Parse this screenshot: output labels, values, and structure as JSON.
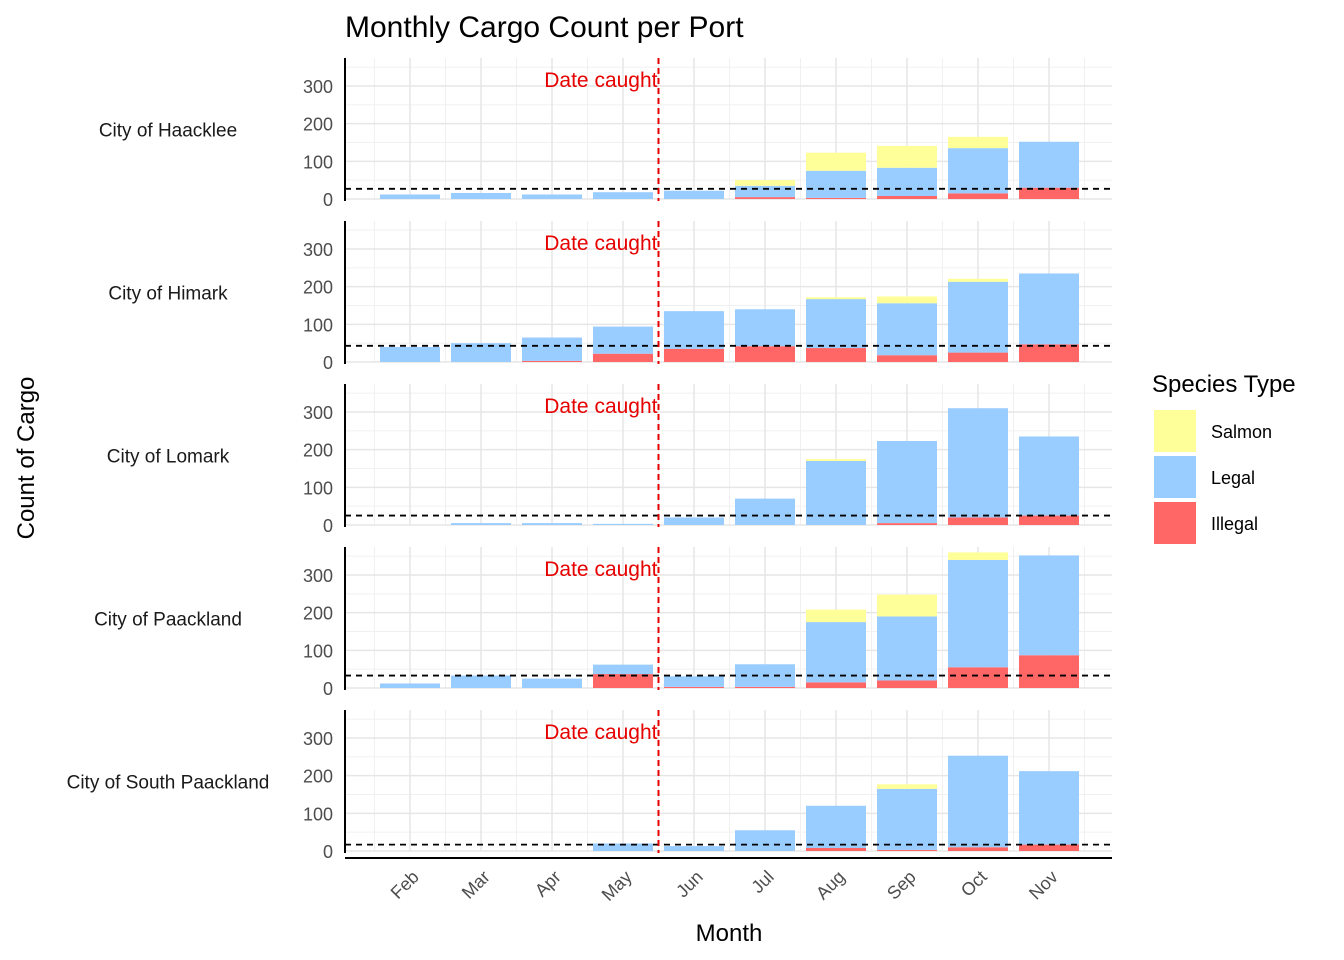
{
  "chart_data": {
    "type": "bar",
    "stacked": true,
    "faceted": true,
    "title": "Monthly Cargo Count per Port",
    "xlabel": "Month",
    "ylabel": "Count of Cargo",
    "ylim": [
      0,
      370
    ],
    "yticks": [
      0,
      100,
      200,
      300
    ],
    "categories": [
      "Feb",
      "Mar",
      "Apr",
      "May",
      "Jun",
      "Jul",
      "Aug",
      "Sep",
      "Oct",
      "Nov"
    ],
    "legend": {
      "title": "Species Type",
      "position": "right",
      "entries": [
        {
          "name": "Salmon",
          "color": "#ffff99"
        },
        {
          "name": "Legal",
          "color": "#99ccff"
        },
        {
          "name": "Illegal",
          "color": "#ff6666"
        }
      ]
    },
    "vline": {
      "after_category": "May",
      "label": "Date caught",
      "color": "#e60000"
    },
    "facets": [
      {
        "name": "City of Haacklee",
        "hline": 27,
        "illegal": [
          0,
          0,
          0,
          0,
          0,
          5,
          3,
          8,
          15,
          30
        ],
        "legal": [
          12,
          16,
          12,
          18,
          22,
          30,
          72,
          75,
          120,
          122
        ],
        "salmon": [
          0,
          0,
          0,
          0,
          0,
          15,
          48,
          58,
          30,
          0
        ]
      },
      {
        "name": "City of Himark",
        "hline": 43,
        "illegal": [
          0,
          0,
          3,
          22,
          35,
          42,
          37,
          18,
          25,
          47
        ],
        "legal": [
          40,
          50,
          62,
          72,
          100,
          98,
          130,
          138,
          188,
          188
        ],
        "salmon": [
          0,
          0,
          0,
          0,
          0,
          0,
          5,
          18,
          8,
          0
        ]
      },
      {
        "name": "City of Lomark",
        "hline": 25,
        "illegal": [
          0,
          0,
          0,
          0,
          0,
          0,
          0,
          5,
          20,
          25
        ],
        "legal": [
          0,
          5,
          5,
          3,
          20,
          70,
          170,
          218,
          290,
          210
        ],
        "salmon": [
          0,
          0,
          0,
          0,
          0,
          0,
          5,
          0,
          0,
          0
        ]
      },
      {
        "name": "City of Paackland",
        "hline": 33,
        "illegal": [
          0,
          0,
          0,
          37,
          3,
          3,
          15,
          20,
          55,
          87
        ],
        "legal": [
          12,
          33,
          25,
          25,
          28,
          60,
          160,
          170,
          285,
          265
        ],
        "salmon": [
          0,
          0,
          0,
          0,
          0,
          0,
          33,
          58,
          20,
          0
        ]
      },
      {
        "name": "City of South Paackland",
        "hline": 17,
        "illegal": [
          0,
          0,
          0,
          0,
          0,
          0,
          8,
          3,
          10,
          17
        ],
        "legal": [
          0,
          0,
          0,
          20,
          13,
          55,
          112,
          162,
          243,
          195
        ],
        "salmon": [
          0,
          0,
          0,
          0,
          0,
          0,
          0,
          12,
          0,
          0
        ]
      }
    ]
  }
}
